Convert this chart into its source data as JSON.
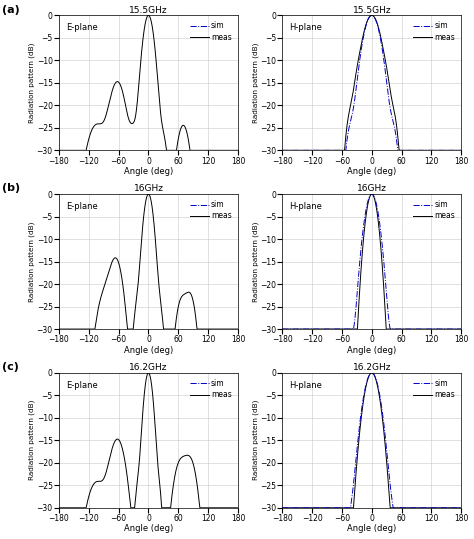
{
  "titles_left": [
    "15.5GHz",
    "16GHz",
    "16.2GHz"
  ],
  "titles_right": [
    "15.5GHz",
    "16GHz",
    "16.2GHz"
  ],
  "plane_left": [
    "E-plane",
    "E-plane",
    "E-plane"
  ],
  "plane_right": [
    "H-plane",
    "H-plane",
    "H-plane"
  ],
  "xlim": [
    -180,
    180
  ],
  "ylim": [
    -30,
    0
  ],
  "xticks": [
    -180,
    -120,
    -60,
    0,
    60,
    120,
    180
  ],
  "yticks": [
    0,
    -5,
    -10,
    -15,
    -20,
    -25,
    -30
  ],
  "xlabel": "Angle (deg)",
  "ylabel": "Radiation pattern (dB)",
  "sim_color": "#0000cc",
  "meas_color": "#000000",
  "row_labels": [
    "(a)",
    "(b)",
    "(c)"
  ]
}
